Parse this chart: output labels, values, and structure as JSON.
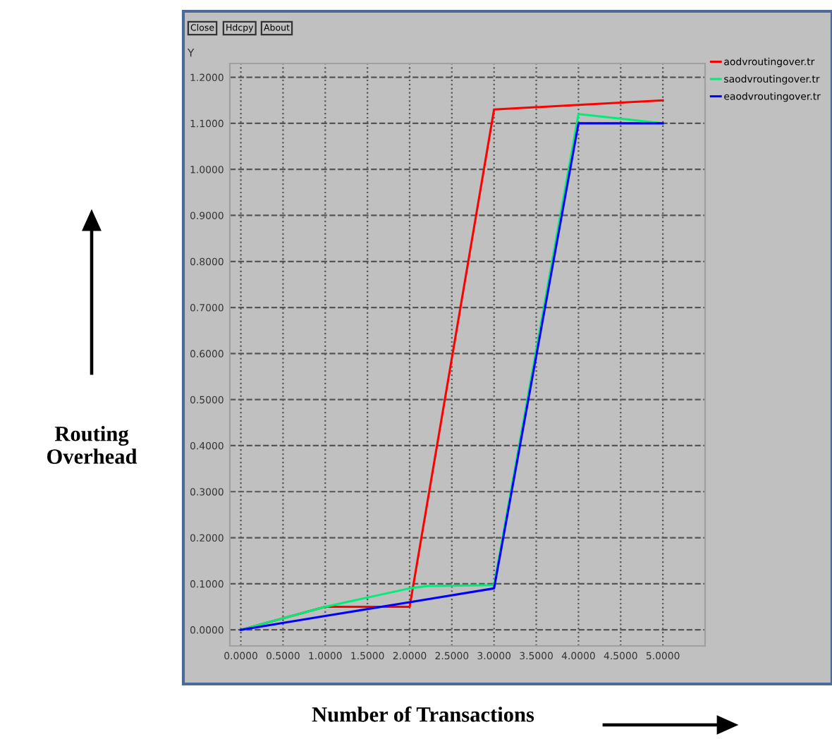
{
  "chart_data": {
    "type": "line",
    "xlabel": "Number of Transactions",
    "ylabel": "Routing\nOverhead",
    "annotations": [
      "Close",
      "Hdcpy",
      "About",
      "Y"
    ],
    "xlim": [
      -0.13,
      5.5
    ],
    "ylim": [
      -0.035,
      1.23
    ],
    "xticks": [
      {
        "value": 0,
        "label": "0.0000"
      },
      {
        "value": 0.5,
        "label": "0.5000"
      },
      {
        "value": 1,
        "label": "1.0000"
      },
      {
        "value": 1.5,
        "label": "1.5000"
      },
      {
        "value": 2,
        "label": "2.0000"
      },
      {
        "value": 2.5,
        "label": "2.5000"
      },
      {
        "value": 3,
        "label": "3.0000"
      },
      {
        "value": 3.5,
        "label": "3.5000"
      },
      {
        "value": 4,
        "label": "4.0000"
      },
      {
        "value": 4.5,
        "label": "4.5000"
      },
      {
        "value": 5,
        "label": "5.0000"
      }
    ],
    "yticks": [
      {
        "value": 0,
        "label": "0.0000"
      },
      {
        "value": 0.1,
        "label": "0.1000"
      },
      {
        "value": 0.2,
        "label": "0.2000"
      },
      {
        "value": 0.3,
        "label": "0.3000"
      },
      {
        "value": 0.4,
        "label": "0.4000"
      },
      {
        "value": 0.5,
        "label": "0.5000"
      },
      {
        "value": 0.6,
        "label": "0.6000"
      },
      {
        "value": 0.7,
        "label": "0.7000"
      },
      {
        "value": 0.8,
        "label": "0.8000"
      },
      {
        "value": 0.9,
        "label": "0.9000"
      },
      {
        "value": 1.0,
        "label": "1.0000"
      },
      {
        "value": 1.1,
        "label": "1.1000"
      },
      {
        "value": 1.2,
        "label": "1.2000"
      }
    ],
    "grid": true,
    "legend": "top right",
    "marker": "none",
    "line_style": "solid",
    "series": [
      {
        "name": "aodvroutingover.tr",
        "color": "#ff0000",
        "x": [
          0,
          1,
          2,
          3,
          4,
          5
        ],
        "values": [
          0,
          0.05,
          0.05,
          1.13,
          1.14,
          1.15
        ]
      },
      {
        "name": "saodvroutingover.tr",
        "color": "#00ee77",
        "x": [
          0,
          1,
          2,
          2.2,
          3,
          4,
          5
        ],
        "values": [
          0,
          0.05,
          0.09,
          0.095,
          0.097,
          1.12,
          1.1
        ]
      },
      {
        "name": "eaodvroutingover.tr",
        "color": "#0000ff",
        "x": [
          0,
          1,
          2,
          3,
          4,
          5
        ],
        "values": [
          0,
          0.03,
          0.06,
          0.09,
          1.1,
          1.1
        ]
      }
    ]
  }
}
